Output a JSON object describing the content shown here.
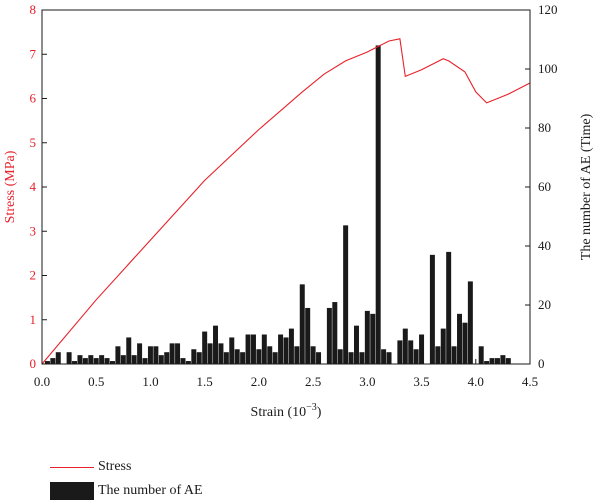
{
  "chart_data": {
    "type": "bar+line",
    "xlabel_main": "Strain (10",
    "xlabel_sup": "−3",
    "xlabel_end": ")",
    "ylabel_left": "Stress (MPa)",
    "ylabel_right": "The number of AE (Time)",
    "xlim": [
      0,
      4.5
    ],
    "ylim_left": [
      0,
      8
    ],
    "ylim_right": [
      0,
      120
    ],
    "x_ticks": [
      "0.0",
      "0.5",
      "1.0",
      "1.5",
      "2.0",
      "2.5",
      "3.0",
      "3.5",
      "4.0",
      "4.5"
    ],
    "y_left_ticks": [
      "0",
      "1",
      "2",
      "3",
      "4",
      "5",
      "6",
      "7",
      "8"
    ],
    "y_right_ticks": [
      "0",
      "20",
      "40",
      "60",
      "80",
      "100",
      "120"
    ],
    "colors": {
      "stress": "#e8202a",
      "ae": "#1a1a1a"
    },
    "series": [
      {
        "name": "Stress",
        "kind": "line",
        "axis": "left",
        "x": [
          0,
          0.5,
          1.0,
          1.5,
          2.0,
          2.4,
          2.6,
          2.8,
          3.0,
          3.2,
          3.3,
          3.35,
          3.5,
          3.7,
          3.75,
          3.9,
          4.0,
          4.1,
          4.2,
          4.3,
          4.5
        ],
        "y": [
          0,
          1.45,
          2.8,
          4.15,
          5.3,
          6.15,
          6.55,
          6.85,
          7.05,
          7.3,
          7.35,
          6.5,
          6.65,
          6.9,
          6.85,
          6.6,
          6.15,
          5.9,
          6.0,
          6.1,
          6.35
        ]
      },
      {
        "name": "The number of AE",
        "kind": "bar",
        "axis": "right",
        "x": [
          0.05,
          0.1,
          0.15,
          0.2,
          0.25,
          0.3,
          0.35,
          0.4,
          0.45,
          0.5,
          0.55,
          0.6,
          0.65,
          0.7,
          0.75,
          0.8,
          0.85,
          0.9,
          0.95,
          1.0,
          1.05,
          1.1,
          1.15,
          1.2,
          1.25,
          1.3,
          1.35,
          1.4,
          1.45,
          1.5,
          1.55,
          1.6,
          1.65,
          1.7,
          1.75,
          1.8,
          1.85,
          1.9,
          1.95,
          2.0,
          2.05,
          2.1,
          2.15,
          2.2,
          2.25,
          2.3,
          2.35,
          2.4,
          2.45,
          2.5,
          2.55,
          2.6,
          2.65,
          2.7,
          2.75,
          2.8,
          2.85,
          2.9,
          2.95,
          3.0,
          3.05,
          3.1,
          3.15,
          3.2,
          3.25,
          3.3,
          3.35,
          3.4,
          3.45,
          3.5,
          3.55,
          3.6,
          3.65,
          3.7,
          3.75,
          3.8,
          3.85,
          3.9,
          3.95,
          4.0,
          4.05,
          4.1,
          4.15,
          4.2,
          4.25,
          4.3,
          4.35,
          4.4,
          4.45
        ],
        "values": [
          1,
          2,
          4,
          0,
          4,
          1,
          3,
          2,
          3,
          2,
          3,
          2,
          1,
          6,
          3,
          9,
          3,
          7,
          2,
          6,
          6,
          3,
          4,
          7,
          7,
          2,
          1,
          5,
          4,
          11,
          7,
          13,
          7,
          4,
          9,
          5,
          4,
          10,
          10,
          5,
          10,
          6,
          4,
          10,
          9,
          12,
          6,
          27,
          19,
          6,
          4,
          0,
          19,
          21,
          5,
          47,
          4,
          13,
          4,
          18,
          17,
          108,
          5,
          4,
          0,
          8,
          12,
          8,
          5,
          10,
          0,
          37,
          6,
          12,
          38,
          6,
          17,
          14,
          28,
          0,
          6,
          1,
          2,
          2,
          3,
          2,
          0,
          0,
          0
        ]
      }
    ],
    "legend": {
      "placement": "bottom-left",
      "entries": [
        "Stress",
        "The number of AE"
      ]
    }
  }
}
